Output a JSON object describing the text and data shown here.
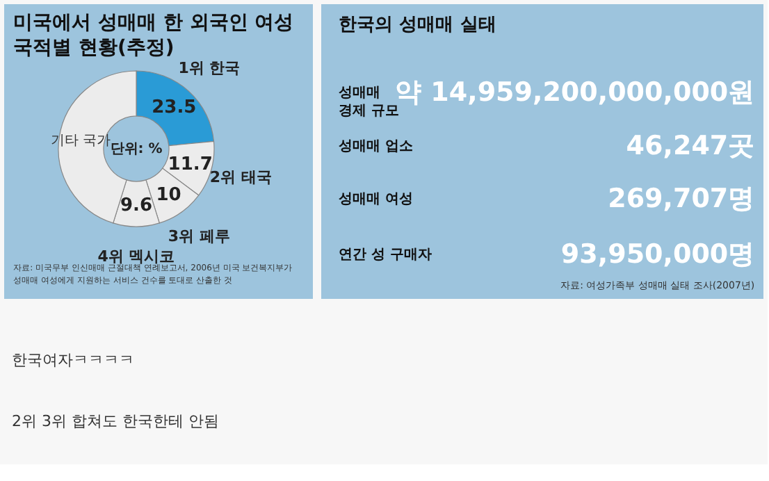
{
  "chart_data": [
    {
      "type": "donut",
      "title": "미국에서 성매매 한 외국인 여성\n국적별 현황(추정)",
      "categories": [
        "1위 한국",
        "2위 태국",
        "3위 페루",
        "4위 멕시코",
        "기타 국가"
      ],
      "values": [
        23.5,
        11.7,
        10,
        9.6,
        45.2
      ],
      "colors": [
        "#2a9bd6",
        "#ececec",
        "#ececec",
        "#ececec",
        "#ececec"
      ],
      "value_labels": [
        "23.5",
        "11.7",
        "10",
        "9.6",
        null
      ],
      "legend": false,
      "annotations": [
        "단위: %",
        "자료: 미국무부 인신매매 근절대책 연례보고서, 2006년 미국 보건복지부가\n성매매 여성에게 지원하는 서비스 건수를 토대로 산출한 것"
      ]
    },
    {
      "type": "other",
      "title": "한국의 성매매 실태",
      "annotations": [
        "성매매\n경제 규모",
        "약 14,959,200,000,000원",
        "성매매 업소",
        "46,247곳",
        "성매매 여성",
        "269,707명",
        "연간 성 구매자",
        "93,950,000명",
        "자료: 여성가족부 성매매 실태 조사(2007년)"
      ]
    },
    {
      "type": "other",
      "annotations": [
        "한국여자ㅋㅋㅋㅋ",
        "2위 3위 합쳐도 한국한테 안됨"
      ]
    }
  ]
}
